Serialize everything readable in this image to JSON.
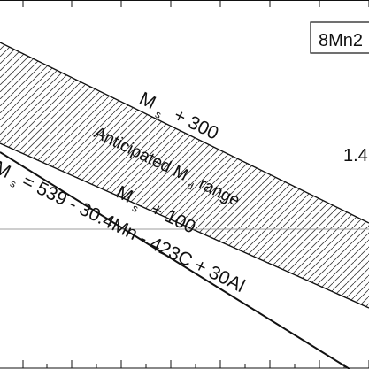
{
  "chart_data": {
    "type": "line",
    "title": "",
    "xlabel": "",
    "ylabel": "",
    "grid": false,
    "legend": "none",
    "colors": {
      "line": "#111111",
      "band_edge": "#111111",
      "band_hatch": "#3b3b3b",
      "reference_line": "#9c9c9c",
      "background": "#ffffff"
    },
    "series": [
      {
        "values": []
      }
    ],
    "annotations": {
      "composition_label": "8Mn2",
      "value_label": "1.4",
      "upper_bound_text": "M",
      "upper_bound_subscript": "s",
      "upper_bound_suffix": "+ 300",
      "lower_bound_text": "M",
      "lower_bound_subscript": "s",
      "lower_bound_suffix": "+ 100",
      "range_prefix": "Anticipated M",
      "range_subscript": "d",
      "range_suffix": " range",
      "equation_prefix": "M",
      "equation_subscript": "s",
      "equation_suffix": " = 539 - 30.4Mn - 423C + 30Al"
    }
  }
}
